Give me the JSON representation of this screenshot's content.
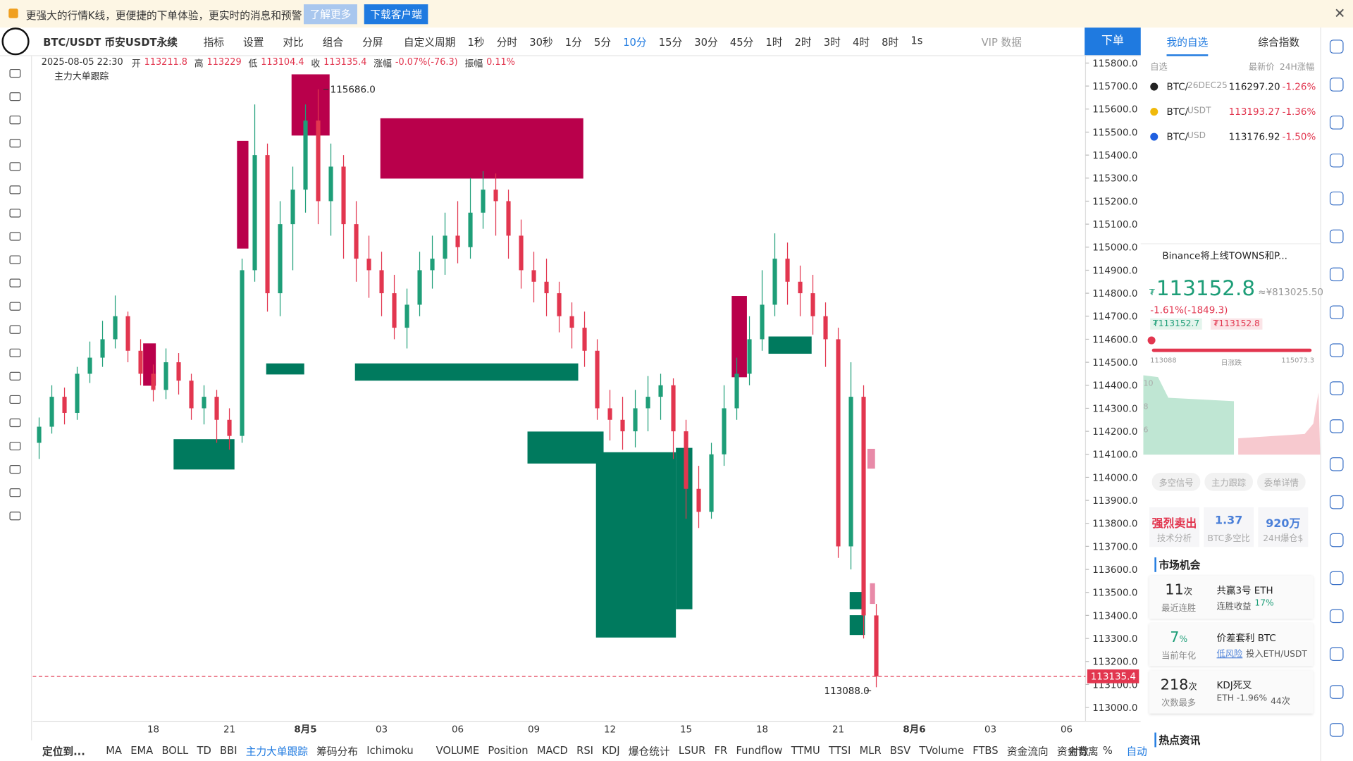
{
  "banner": {
    "text": "更强大的行情K线，更便捷的下单体验，更实时的消息和预警",
    "buttons": [
      "了解更多",
      "下载客户端"
    ]
  },
  "toolbar": {
    "symbol": "BTC/USDT 币安USDT永续",
    "tools": [
      "指标",
      "设置",
      "对比",
      "组合",
      "分屏"
    ],
    "periods": [
      "自定义周期",
      "1秒",
      "分时",
      "30秒",
      "1分",
      "5分",
      "10分",
      "15分",
      "30分",
      "45分",
      "1时",
      "2时",
      "3时",
      "4时",
      "8时",
      "1s"
    ],
    "active_period": "10分",
    "vip": "VIP 数据",
    "order": "下单",
    "tabs": [
      "我的自选",
      "综合指数"
    ]
  },
  "chart_data": {
    "type": "candlestick",
    "legend": "主力大单跟踪",
    "info": {
      "time": "2025-08-05 22:30",
      "items": [
        {
          "label": "开",
          "value": 113211.8
        },
        {
          "label": "高",
          "value": 113229.0
        },
        {
          "label": "低",
          "value": 113104.4
        },
        {
          "label": "收",
          "value": 113135.4
        },
        {
          "label": "涨幅",
          "value": "-0.07%(-76.3)"
        },
        {
          "label": "振幅",
          "value": "0.11%"
        }
      ]
    },
    "categories": [
      null,
      null,
      null,
      null,
      null,
      null,
      null,
      null,
      null,
      "18",
      null,
      null,
      null,
      null,
      null,
      "21",
      null,
      null,
      null,
      null,
      null,
      "8月5",
      null,
      null,
      null,
      null,
      null,
      "03",
      null,
      null,
      null,
      null,
      null,
      "06",
      null,
      null,
      null,
      null,
      null,
      "09",
      null,
      null,
      null,
      null,
      null,
      "12",
      null,
      null,
      null,
      null,
      null,
      "15",
      null,
      null,
      null,
      null,
      null,
      "18",
      null,
      null,
      null,
      null,
      null,
      "21",
      null,
      null,
      null,
      null,
      null,
      "8月6",
      null,
      null,
      null,
      null,
      null,
      "03",
      null,
      null,
      null,
      null,
      null,
      "06",
      null,
      null
    ],
    "open": [
      114150,
      114220,
      114350,
      114280,
      114450,
      114520,
      114600,
      114700,
      114550,
      114450,
      114380,
      114500,
      114420,
      114300,
      114350,
      114250,
      114180,
      114900,
      115400,
      114800,
      115100,
      115250,
      115550,
      115200,
      115350,
      115100,
      114950,
      114900,
      114800,
      114650,
      114750,
      114900,
      114950,
      115050,
      115000,
      115150,
      115250,
      115200,
      115050,
      114900,
      114850,
      114800,
      114700,
      114650,
      114550,
      114300,
      114250,
      114200,
      114300,
      114350,
      114400,
      114200,
      113950,
      113850,
      114100,
      114300,
      114450,
      114600,
      114750,
      114950,
      114850,
      114800,
      114700,
      114600,
      113700,
      114350,
      113400,
      null,
      null,
      null,
      null,
      null,
      null,
      null,
      null,
      null,
      null,
      null,
      null,
      null,
      null,
      null,
      null,
      null
    ],
    "high": [
      114260,
      114400,
      114390,
      114480,
      114590,
      114680,
      114790,
      114720,
      114600,
      114490,
      114560,
      114540,
      114450,
      114400,
      114380,
      114300,
      114950,
      115620,
      115450,
      115200,
      115350,
      115620,
      115686,
      115450,
      115400,
      115200,
      115050,
      114980,
      114880,
      114820,
      114980,
      115050,
      115150,
      115200,
      115300,
      115330,
      115320,
      115250,
      115120,
      114980,
      114950,
      114850,
      114760,
      114720,
      114600,
      114380,
      114350,
      114380,
      114440,
      114450,
      114430,
      114250,
      114050,
      114150,
      114400,
      114520,
      114700,
      114900,
      115060,
      115020,
      114920,
      114880,
      114760,
      114650,
      114500,
      114400,
      113450,
      null,
      null,
      null,
      null,
      null,
      null,
      null,
      null,
      null,
      null,
      null,
      null,
      null,
      null,
      null,
      null,
      null
    ],
    "low": [
      114080,
      114190,
      114230,
      114250,
      114410,
      114480,
      114560,
      114500,
      114400,
      114330,
      114340,
      114360,
      114250,
      114230,
      114150,
      114120,
      114150,
      114850,
      114720,
      114700,
      114900,
      115150,
      115100,
      115050,
      114950,
      114850,
      114780,
      114700,
      114600,
      114560,
      114700,
      114820,
      114880,
      114930,
      114950,
      115080,
      115050,
      114950,
      114820,
      114760,
      114700,
      114630,
      114560,
      114480,
      114250,
      114160,
      114120,
      114130,
      114200,
      114250,
      114080,
      113820,
      113780,
      113820,
      114050,
      114250,
      114400,
      114550,
      114700,
      114750,
      114700,
      114620,
      114480,
      113650,
      113600,
      113300,
      113088,
      null,
      null,
      null,
      null,
      null,
      null,
      null,
      null,
      null,
      null,
      null,
      null,
      null,
      null,
      null,
      null,
      null
    ],
    "close": [
      114220,
      114350,
      114280,
      114450,
      114520,
      114600,
      114700,
      114550,
      114450,
      114380,
      114500,
      114420,
      114300,
      114350,
      114250,
      114180,
      114900,
      115400,
      114800,
      115100,
      115250,
      115550,
      115200,
      115350,
      115100,
      114950,
      114900,
      114800,
      114650,
      114750,
      114900,
      114950,
      115050,
      115000,
      115150,
      115250,
      115200,
      115050,
      114900,
      114850,
      114800,
      114700,
      114650,
      114550,
      114300,
      114250,
      114200,
      114300,
      114350,
      114400,
      114200,
      113950,
      113850,
      114100,
      114300,
      114450,
      114600,
      114750,
      114950,
      114850,
      114800,
      114700,
      114600,
      113700,
      114350,
      113400,
      113135.4,
      null,
      null,
      null,
      null,
      null,
      null,
      null,
      null,
      null,
      null,
      null,
      null,
      null,
      null,
      null,
      null,
      null
    ],
    "up_color": "#1e9e78",
    "down_color": "#e2364f",
    "blocks": [
      {
        "x": [
          20.4,
          23.4
        ],
        "y": [
          115485,
          115751
        ],
        "color": "#b9004b"
      },
      {
        "x": [
          27.4,
          43.4
        ],
        "y": [
          115298,
          115560
        ],
        "color": "#b9004b"
      },
      {
        "x": [
          16.1,
          17.0
        ],
        "y": [
          114994,
          115462
        ],
        "color": "#b9004b"
      },
      {
        "x": [
          8.7,
          9.7
        ],
        "y": [
          114398,
          114582
        ],
        "color": "#b9004b"
      },
      {
        "x": [
          11.1,
          15.9
        ],
        "y": [
          114034,
          114166
        ],
        "color": "#007a5e"
      },
      {
        "x": [
          18.4,
          21.4
        ],
        "y": [
          114447,
          114495
        ],
        "color": "#007a5e"
      },
      {
        "x": [
          25.4,
          43.0
        ],
        "y": [
          114420,
          114495
        ],
        "color": "#007a5e"
      },
      {
        "x": [
          39.0,
          45.0
        ],
        "y": [
          114060,
          114199
        ],
        "color": "#007a5e"
      },
      {
        "x": [
          44.4,
          50.7
        ],
        "y": [
          113304,
          114109
        ],
        "color": "#007a5e"
      },
      {
        "x": [
          50.7,
          52.0
        ],
        "y": [
          113427,
          114128
        ],
        "color": "#007a5e"
      },
      {
        "x": [
          55.1,
          56.3
        ],
        "y": [
          114435,
          114788
        ],
        "color": "#b9004b"
      },
      {
        "x": [
          58.0,
          61.4
        ],
        "y": [
          114537,
          114612
        ],
        "color": "#007a5e"
      },
      {
        "x": [
          64.4,
          65.4
        ],
        "y": [
          113427,
          113502
        ],
        "color": "#007a5e"
      },
      {
        "x": [
          64.4,
          65.6
        ],
        "y": [
          113315,
          113401
        ],
        "color": "#007a5e"
      },
      {
        "x": [
          65.8,
          66.4
        ],
        "y": [
          114038,
          114124
        ],
        "color": "#e88aa8"
      },
      {
        "x": [
          66.0,
          66.4
        ],
        "y": [
          113450,
          113540
        ],
        "color": "#e88aa8"
      }
    ],
    "annotations": [
      {
        "value": 115686,
        "label": "115686.0"
      },
      {
        "value": 113088,
        "label": "113088.0"
      }
    ],
    "last_price": 113135.4,
    "last_color": "#e2364f",
    "ylim": [
      112940,
      115834
    ],
    "grid": false,
    "yticks": [
      {
        "value": 113000,
        "label": "113000.0"
      },
      {
        "value": 113100,
        "label": "113100.0"
      },
      {
        "value": 113200,
        "label": "113200.0"
      },
      {
        "value": 113300,
        "label": "113300.0"
      },
      {
        "value": 113400,
        "label": "113400.0"
      },
      {
        "value": 113500,
        "label": "113500.0"
      },
      {
        "value": 113600,
        "label": "113600.0"
      },
      {
        "value": 113700,
        "label": "113700.0"
      },
      {
        "value": 113800,
        "label": "113800.0"
      },
      {
        "value": 113900,
        "label": "113900.0"
      },
      {
        "value": 114000,
        "label": "114000.0"
      },
      {
        "value": 114100,
        "label": "114100.0"
      },
      {
        "value": 114200,
        "label": "114200.0"
      },
      {
        "value": 114300,
        "label": "114300.0"
      },
      {
        "value": 114400,
        "label": "114400.0"
      },
      {
        "value": 114500,
        "label": "114500.0"
      },
      {
        "value": 114600,
        "label": "114600.0"
      },
      {
        "value": 114700,
        "label": "114700.0"
      },
      {
        "value": 114800,
        "label": "114800.0"
      },
      {
        "value": 114900,
        "label": "114900.0"
      },
      {
        "value": 115000,
        "label": "115000.0"
      },
      {
        "value": 115100,
        "label": "115100.0"
      },
      {
        "value": 115200,
        "label": "115200.0"
      },
      {
        "value": 115300,
        "label": "115300.0"
      },
      {
        "value": 115400,
        "label": "115400.0"
      },
      {
        "value": 115500,
        "label": "115500.0"
      },
      {
        "value": 115600,
        "label": "115600.0"
      },
      {
        "value": 115700,
        "label": "115700.0"
      },
      {
        "value": 115800,
        "label": "115800.0"
      }
    ]
  },
  "bottom": {
    "locate": "定位到...",
    "indicators": [
      "MA",
      "EMA",
      "BOLL",
      "TD",
      "BBI",
      "主力大单跟踪",
      "筹码分布",
      "Ichimoku",
      "VOLUME",
      "Position",
      "MACD",
      "RSI",
      "KDJ",
      "爆仓统计",
      "LSUR",
      "FR",
      "Fundflow",
      "TTMU",
      "TTSI",
      "MLR",
      "BSV",
      "TVolume",
      "FTBS",
      "资金流向",
      "资金背离"
    ],
    "active": "主力大单跟踪",
    "right": [
      "对数",
      "%",
      "自动"
    ]
  },
  "sidebar": {
    "watch_head": [
      "自选",
      "最新价",
      "24H涨幅"
    ],
    "watchlist": [
      {
        "base": "BTC/",
        "quote": "26DEC25",
        "price": "116297.20",
        "change": "-1.26%"
      },
      {
        "base": "BTC/",
        "quote": "USDT",
        "price": "113193.27",
        "change": "-1.36%"
      },
      {
        "base": "BTC/",
        "quote": "USD",
        "price": "113176.92",
        "change": "-1.50%"
      }
    ],
    "news": "Binance将上线TOWNS和P...",
    "currency": "₮",
    "price": "113152.8",
    "cny": "≈¥813025.50",
    "change": "-1.61%(-1849.3)",
    "bid": "₮113152.7",
    "ask": "₮113152.8",
    "range": [
      "113088",
      "日涨跌",
      "115073.3"
    ],
    "mini_axis": [
      "10",
      "8",
      "6"
    ],
    "pills": [
      "多空信号",
      "主力跟踪",
      "委单详情"
    ],
    "cards": [
      {
        "value": "强烈卖出",
        "label": "技术分析"
      },
      {
        "value": "1.37",
        "label": "BTC多空比"
      },
      {
        "value": "920万",
        "label": "24H爆仓$"
      }
    ],
    "market_title": "市场机会",
    "opps": [
      {
        "num": "11",
        "unit": "次",
        "sub": "最近连胜",
        "title": "共赢3号 ETH",
        "desc": "连胜收益",
        "hl": "17%"
      },
      {
        "num": "7",
        "unit": "%",
        "sub": "当前年化",
        "title": "价差套利 BTC",
        "desc": "投入ETH/USDT",
        "hl": "低风险"
      },
      {
        "num": "218",
        "unit": "次",
        "sub": "次数最多",
        "title": "KDJ死叉",
        "desc": "44次",
        "hl": "ETH -1.96%"
      }
    ],
    "hot_title": "热点资讯"
  }
}
